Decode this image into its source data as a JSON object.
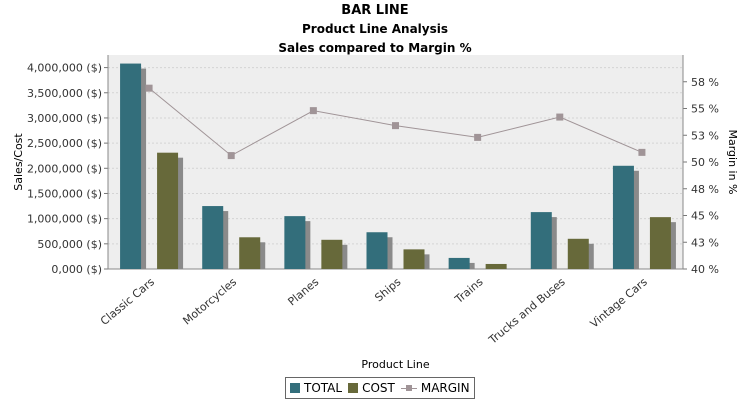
{
  "titles": {
    "title": "BAR LINE",
    "subtitle1": "Product Line Analysis",
    "subtitle2": "Sales compared to Margin %"
  },
  "chart_data": {
    "type": "bar",
    "categories": [
      "Classic Cars",
      "Motorcycles",
      "Planes",
      "Ships",
      "Trains",
      "Trucks and Buses",
      "Vintage Cars"
    ],
    "series": [
      {
        "name": "TOTAL",
        "type": "bar",
        "axis": "left",
        "color": "#336e7b",
        "values": [
          4080000,
          1250000,
          1050000,
          730000,
          220000,
          1130000,
          2050000
        ]
      },
      {
        "name": "COST",
        "type": "bar",
        "axis": "left",
        "color": "#67693a",
        "values": [
          2310000,
          630000,
          580000,
          390000,
          100000,
          600000,
          1030000
        ]
      },
      {
        "name": "MARGIN",
        "type": "line",
        "axis": "right",
        "color": "#a09497",
        "values": [
          56.9,
          50.6,
          54.8,
          53.4,
          52.3,
          54.2,
          50.9
        ]
      }
    ],
    "xlabel": "Product Line",
    "ylabel": "Sales/Cost",
    "y2label": "Margin in %",
    "ylim": [
      0,
      4250000
    ],
    "yticks": [
      0,
      500000,
      1000000,
      1500000,
      2000000,
      2500000,
      3000000,
      3500000,
      4000000
    ],
    "ytick_labels": [
      "0,000 ($)",
      "500,000 ($)",
      "1,000,000 ($)",
      "1,500,000 ($)",
      "2,000,000 ($)",
      "2,500,000 ($)",
      "3,000,000 ($)",
      "3,500,000 ($)",
      "4,000,000 ($)"
    ],
    "y2lim": [
      40,
      60
    ],
    "y2ticks": [
      40,
      42.5,
      45,
      47.5,
      50,
      52.5,
      55,
      57.5
    ],
    "y2tick_labels": [
      "40 %",
      "43 %",
      "45 %",
      "48 %",
      "50 %",
      "53 %",
      "55 %",
      "58 %"
    ],
    "grid": true,
    "legend": "bottom"
  },
  "legend": {
    "total": "TOTAL",
    "cost": "COST",
    "margin": "MARGIN"
  }
}
